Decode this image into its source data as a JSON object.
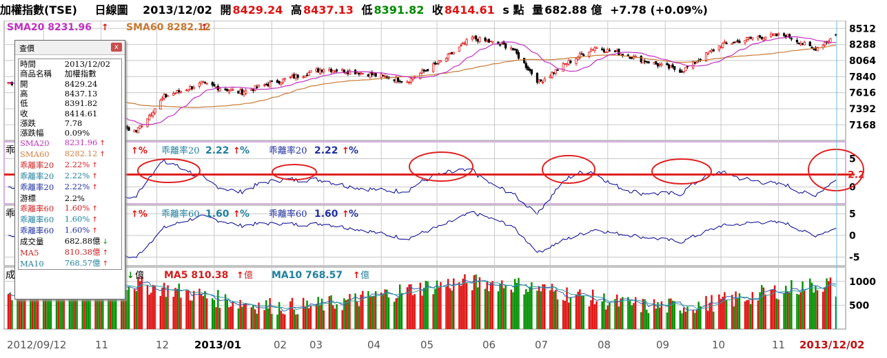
{
  "header": {
    "title": "加權指數(TSE)",
    "period": "日線圖",
    "date": "2013/12/02",
    "open_label": "開",
    "open": "8429.24",
    "high_label": "高",
    "high": "8437.13",
    "low_label": "低",
    "low": "8391.82",
    "close_label": "收",
    "close": "8414.61",
    "unit": "s 點",
    "volume_label": "量",
    "volume": "682.88 億",
    "change": "+7.78 (+0.09%)"
  },
  "panels": {
    "price": {
      "sma20_label": "SMA20 8231.96",
      "sma60_label": "SMA60 8282.12",
      "ticks": [
        "8512",
        "8288",
        "8064",
        "7840",
        "7616",
        "7392",
        "7168"
      ]
    },
    "bias20": {
      "label_a": "乖離率20",
      "value_a": "2.22",
      "label_b": "乖離率20",
      "value_b": "2.22",
      "side_label": "乖",
      "pct": "%",
      "ticks": [
        "5",
        "0"
      ],
      "marker": "2.2"
    },
    "bias60": {
      "label_a": "乖離率60",
      "value_a": "1.60",
      "label_b": "乖離率60",
      "value_b": "1.60",
      "side_label": "乖",
      "pct": "%",
      "ticks": [
        "5",
        "0",
        "-5"
      ]
    },
    "volume": {
      "ma5_label": "MA5 810.38",
      "ma10_label": "MA10 768.57",
      "unit": "億",
      "side_label": "成",
      "ticks": [
        "1000",
        "500"
      ]
    }
  },
  "xaxis": {
    "labels": [
      "2012/09/12",
      "11",
      "12",
      "2013/01",
      "02",
      "03",
      "04",
      "05",
      "06",
      "07",
      "08",
      "09",
      "10",
      "11",
      "2013/12/02"
    ]
  },
  "popup": {
    "title": "查價",
    "close_glyph": "x",
    "rows": [
      {
        "k": "時間",
        "v": "2013/12/02",
        "kc": "#000",
        "vc": "#000",
        "a": ""
      },
      {
        "k": "商品名稱",
        "v": "加權指數",
        "kc": "#000",
        "vc": "#000",
        "a": ""
      },
      {
        "k": "開",
        "v": "8429.24",
        "kc": "#000",
        "vc": "#000",
        "a": ""
      },
      {
        "k": "高",
        "v": "8437.13",
        "kc": "#000",
        "vc": "#000",
        "a": ""
      },
      {
        "k": "低",
        "v": "8391.82",
        "kc": "#000",
        "vc": "#000",
        "a": ""
      },
      {
        "k": "收",
        "v": "8414.61",
        "kc": "#000",
        "vc": "#000",
        "a": ""
      },
      {
        "k": "漲跌",
        "v": "7.78",
        "kc": "#000",
        "vc": "#000",
        "a": ""
      },
      {
        "k": "漲跌幅",
        "v": "0.09%",
        "kc": "#000",
        "vc": "#000",
        "a": ""
      },
      {
        "k": "SMA20",
        "v": "8231.96",
        "kc": "#c030c0",
        "vc": "#c030c0",
        "a": "up"
      },
      {
        "k": "SMA60",
        "v": "8282.12",
        "kc": "#d08040",
        "vc": "#d08040",
        "a": "up"
      },
      {
        "k": "乖離率20",
        "v": "2.22%",
        "kc": "#d02020",
        "vc": "#d02020",
        "a": "up"
      },
      {
        "k": "乖離率20",
        "v": "2.22%",
        "kc": "#2080a0",
        "vc": "#2080a0",
        "a": "up"
      },
      {
        "k": "乖離率20",
        "v": "2.22%",
        "kc": "#2030a0",
        "vc": "#2030a0",
        "a": "up"
      },
      {
        "k": "游標",
        "v": "2.2%",
        "kc": "#000",
        "vc": "#000",
        "a": ""
      },
      {
        "k": "乖離率60",
        "v": "1.60%",
        "kc": "#d02020",
        "vc": "#d02020",
        "a": "up"
      },
      {
        "k": "乖離率60",
        "v": "1.60%",
        "kc": "#2080a0",
        "vc": "#2080a0",
        "a": "up"
      },
      {
        "k": "乖離率60",
        "v": "1.60%",
        "kc": "#2030a0",
        "vc": "#2030a0",
        "a": "up"
      },
      {
        "k": "成交量",
        "v": "682.88億",
        "kc": "#000",
        "vc": "#000",
        "a": "down"
      },
      {
        "k": "MA5",
        "v": "810.38億",
        "kc": "#d02020",
        "vc": "#d02020",
        "a": "up"
      },
      {
        "k": "MA10",
        "v": "768.57億",
        "kc": "#2080a0",
        "vc": "#2080a0",
        "a": "up"
      }
    ]
  },
  "colors": {
    "up": "#e01010",
    "down": "#009000",
    "sma20": "#c030c0",
    "sma60": "#c87830",
    "bias": "#000090",
    "circle": "#e02020",
    "frame": "#b060c0",
    "grid": "#c8c8c8"
  },
  "chart_data": [
    {
      "type": "candlestick",
      "title": "加權指數(TSE) 日線圖",
      "x_range": [
        "2012/09/12",
        "2013/12/02"
      ],
      "ylim": [
        6950,
        8620
      ],
      "anchors": [
        {
          "date": "2012/09/12",
          "close": 7760
        },
        {
          "date": "2012/10/01",
          "close": 7700
        },
        {
          "date": "2012/10/20",
          "close": 7420
        },
        {
          "date": "2012/11/10",
          "close": 7150
        },
        {
          "date": "2012/11/20",
          "close": 7080
        },
        {
          "date": "2012/12/05",
          "close": 7560
        },
        {
          "date": "2012/12/25",
          "close": 7740
        },
        {
          "date": "2013/01/15",
          "close": 7620
        },
        {
          "date": "2013/02/05",
          "close": 7780
        },
        {
          "date": "2013/03/01",
          "close": 7950
        },
        {
          "date": "2013/03/20",
          "close": 7900
        },
        {
          "date": "2013/04/15",
          "close": 7780
        },
        {
          "date": "2013/05/05",
          "close": 8080
        },
        {
          "date": "2013/05/20",
          "close": 8380
        },
        {
          "date": "2013/06/10",
          "close": 8250
        },
        {
          "date": "2013/06/25",
          "close": 7760
        },
        {
          "date": "2013/07/10",
          "close": 8030
        },
        {
          "date": "2013/07/25",
          "close": 8250
        },
        {
          "date": "2013/08/10",
          "close": 8150
        },
        {
          "date": "2013/08/30",
          "close": 7990
        },
        {
          "date": "2013/09/10",
          "close": 7920
        },
        {
          "date": "2013/10/01",
          "close": 8280
        },
        {
          "date": "2013/10/20",
          "close": 8390
        },
        {
          "date": "2013/11/05",
          "close": 8420
        },
        {
          "date": "2013/11/20",
          "close": 8220
        },
        {
          "date": "2013/12/02",
          "close": 8414.61
        }
      ],
      "last": {
        "open": 8429.24,
        "high": 8437.13,
        "low": 8391.82,
        "close": 8414.61
      },
      "series": [
        {
          "name": "SMA20",
          "last": 8231.96
        },
        {
          "name": "SMA60",
          "last": 8282.12
        }
      ]
    },
    {
      "type": "line",
      "title": "乖離率20",
      "ylim": [
        -3,
        8
      ],
      "reference_level": 2.2,
      "last": 2.22,
      "highlighted_peaks": [
        "2012/12",
        "2013/02",
        "2013/05",
        "2013/07",
        "2013/09",
        "2013/12"
      ]
    },
    {
      "type": "line",
      "title": "乖離率60",
      "ylim": [
        -7,
        7
      ],
      "last": 1.6
    },
    {
      "type": "bar",
      "title": "成交量",
      "unit": "億",
      "ylim": [
        0,
        1300
      ],
      "last": 682.88,
      "series": [
        {
          "name": "MA5",
          "last": 810.38
        },
        {
          "name": "MA10",
          "last": 768.57
        }
      ]
    }
  ]
}
